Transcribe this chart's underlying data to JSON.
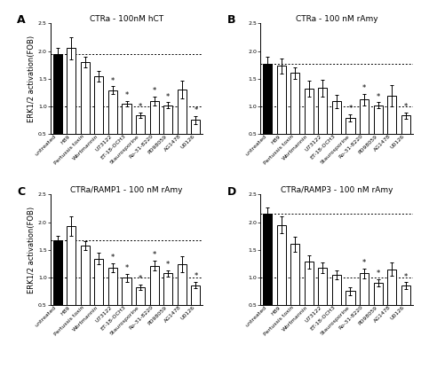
{
  "panels": [
    {
      "label": "A",
      "title": "CTRa - 100nM hCT",
      "categories": [
        "untreated",
        "H89",
        "Pertussis toxin",
        "Wortmannin",
        "U73122",
        "ET-18-OCH3",
        "Staurosporine",
        "Ro-31-8220",
        "PD98059",
        "AG1478",
        "U0126"
      ],
      "values": [
        1.95,
        2.05,
        1.8,
        1.54,
        1.29,
        1.04,
        0.84,
        1.09,
        1.02,
        1.3,
        0.75
      ],
      "errors": [
        0.1,
        0.2,
        0.1,
        0.1,
        0.07,
        0.05,
        0.05,
        0.08,
        0.05,
        0.16,
        0.07
      ],
      "significant": [
        false,
        false,
        false,
        false,
        true,
        true,
        true,
        true,
        true,
        false,
        true
      ],
      "bar_colors": [
        "black",
        "white",
        "white",
        "white",
        "white",
        "white",
        "white",
        "white",
        "white",
        "white",
        "white"
      ],
      "dashed_lines": [
        1.0,
        1.95
      ],
      "ylim": [
        0.5,
        2.5
      ],
      "yticks": [
        0.5,
        1.0,
        1.5,
        2.0,
        2.5
      ]
    },
    {
      "label": "B",
      "title": "CTRa - 100 nM rAmy",
      "categories": [
        "untreated",
        "H89",
        "Pertussis toxin",
        "Wortmannin",
        "U73122",
        "ET-18-OCH3",
        "Staurosporine",
        "Ro-31-8220",
        "PD98059",
        "AG1478",
        "U0126"
      ],
      "values": [
        1.77,
        1.73,
        1.6,
        1.32,
        1.33,
        1.09,
        0.79,
        1.12,
        1.02,
        1.19,
        0.83
      ],
      "errors": [
        0.12,
        0.14,
        0.1,
        0.15,
        0.15,
        0.12,
        0.06,
        0.1,
        0.05,
        0.2,
        0.05
      ],
      "significant": [
        false,
        false,
        false,
        false,
        false,
        false,
        true,
        true,
        true,
        false,
        true
      ],
      "bar_colors": [
        "black",
        "white",
        "white",
        "white",
        "white",
        "white",
        "white",
        "white",
        "white",
        "white",
        "white"
      ],
      "dashed_lines": [
        1.0,
        1.77
      ],
      "ylim": [
        0.5,
        2.5
      ],
      "yticks": [
        0.5,
        1.0,
        1.5,
        2.0,
        2.5
      ]
    },
    {
      "label": "C",
      "title": "CTRa/RAMP1 - 100 nM rAmy",
      "categories": [
        "untreated",
        "H89",
        "Pertussis toxin",
        "Wortmannin",
        "U73122",
        "ET-18-OCH3",
        "Staurosporine",
        "Ro-31-8220",
        "PD98059",
        "AG1478",
        "U0126"
      ],
      "values": [
        1.68,
        1.93,
        1.58,
        1.34,
        1.18,
        0.99,
        0.82,
        1.21,
        1.07,
        1.24,
        0.86
      ],
      "errors": [
        0.07,
        0.18,
        0.08,
        0.1,
        0.08,
        0.07,
        0.05,
        0.09,
        0.06,
        0.14,
        0.06
      ],
      "significant": [
        false,
        false,
        false,
        false,
        true,
        true,
        true,
        true,
        true,
        false,
        true
      ],
      "bar_colors": [
        "black",
        "white",
        "white",
        "white",
        "white",
        "white",
        "white",
        "white",
        "white",
        "white",
        "white"
      ],
      "dashed_lines": [
        1.0,
        1.68
      ],
      "ylim": [
        0.5,
        2.5
      ],
      "yticks": [
        0.5,
        1.0,
        1.5,
        2.0,
        2.5
      ]
    },
    {
      "label": "D",
      "title": "CTRa/RAMP3 - 100 nM rAmy",
      "categories": [
        "untreated",
        "H89",
        "Pertussis toxin",
        "Wortmannin",
        "U73122",
        "ET-18-OCH3",
        "Staurosporine",
        "Ro-31-8220",
        "PD98059",
        "AG1478",
        "U0126"
      ],
      "values": [
        2.15,
        1.95,
        1.6,
        1.28,
        1.17,
        1.05,
        0.75,
        1.07,
        0.9,
        1.15,
        0.85
      ],
      "errors": [
        0.12,
        0.15,
        0.13,
        0.12,
        0.1,
        0.08,
        0.07,
        0.09,
        0.06,
        0.12,
        0.06
      ],
      "significant": [
        false,
        false,
        false,
        false,
        false,
        false,
        false,
        true,
        true,
        false,
        true
      ],
      "bar_colors": [
        "black",
        "white",
        "white",
        "white",
        "white",
        "white",
        "white",
        "white",
        "white",
        "white",
        "white"
      ],
      "dashed_lines": [
        1.0,
        2.15
      ],
      "ylim": [
        0.5,
        2.5
      ],
      "yticks": [
        0.5,
        1.0,
        1.5,
        2.0,
        2.5
      ]
    }
  ],
  "ylabel": "ERK1/2 activation(FOB)",
  "figure_bg": "white",
  "bar_edgecolor": "black",
  "bar_linewidth": 0.7,
  "error_color": "black",
  "error_linewidth": 0.7,
  "star_fontsize": 6,
  "title_fontsize": 6.5,
  "tick_fontsize": 4.5,
  "ylabel_fontsize": 6,
  "panel_label_fontsize": 9
}
